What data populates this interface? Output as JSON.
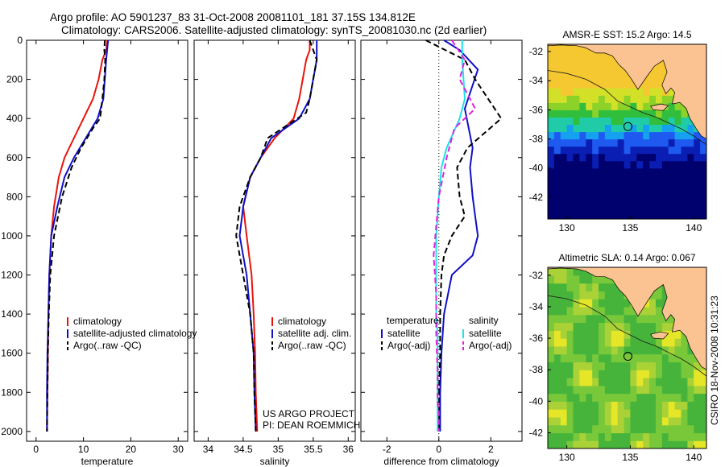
{
  "header": {
    "line1": "Argo profile: AO 5901237_83 31-Oct-2008 20081101_181 37.15S 134.812E",
    "line2": "Climatology: CARS2006. Satellite-adjusted climatology: synTS_20081030.nc (2d earlier)"
  },
  "footer_note": {
    "line1": "US ARGO PROJECT",
    "line2": "PI: DEAN ROEMMICH"
  },
  "side_label": "CSIRO 18-Nov-2008 10:31:23",
  "colors": {
    "climatology": "#e8140c",
    "satellite": "#1010c8",
    "argo": "#000000",
    "sal_satellite": "#20e0e8",
    "sal_argo": "#e020e0",
    "land": "#fbc392"
  },
  "chart_data": [
    {
      "type": "line",
      "xlabel": "temperature",
      "ylabel": "",
      "xlim": [
        -2,
        32
      ],
      "ylim": [
        2050,
        0
      ],
      "x_ticks": [
        "0",
        "10",
        "20",
        "30"
      ],
      "y_ticks": [
        "0",
        "200",
        "400",
        "600",
        "800",
        "1000",
        "1200",
        "1400",
        "1600",
        "1800",
        "2000"
      ],
      "legend": [
        "climatology",
        "satellite-adjusted climatology",
        "Argo(..raw -QC)"
      ],
      "series": [
        {
          "name": "climatology",
          "x": [
            15.0,
            14.8,
            14.0,
            13.2,
            12.0,
            10.0,
            8.0,
            6.0,
            4.8,
            3.8,
            3.2,
            2.8,
            2.6,
            2.5,
            2.4,
            2.3
          ],
          "y": [
            0,
            50,
            100,
            200,
            300,
            400,
            500,
            600,
            700,
            850,
            1000,
            1200,
            1400,
            1600,
            1800,
            2000
          ]
        },
        {
          "name": "satellite-adjusted climatology",
          "x": [
            15.2,
            15.0,
            14.8,
            14.5,
            14.2,
            13.0,
            10.5,
            8.0,
            6.0,
            4.5,
            3.2,
            2.8,
            2.6,
            2.4,
            2.3,
            2.3
          ],
          "y": [
            0,
            50,
            100,
            200,
            300,
            400,
            500,
            600,
            700,
            850,
            1000,
            1200,
            1400,
            1600,
            1800,
            2000
          ]
        },
        {
          "name": "Argo(..raw -QC)",
          "x": [
            14.5,
            14.4,
            14.6,
            14.4,
            14.0,
            13.5,
            12.0,
            9.5,
            7.5,
            5.5,
            3.8,
            3.0,
            2.7,
            2.5,
            2.4,
            2.3
          ],
          "y": [
            0,
            50,
            100,
            200,
            300,
            400,
            450,
            550,
            650,
            800,
            1000,
            1200,
            1400,
            1600,
            1800,
            2000
          ]
        }
      ]
    },
    {
      "type": "line",
      "xlabel": "salinity",
      "ylabel": "",
      "xlim": [
        33.8,
        36.1
      ],
      "ylim": [
        2050,
        0
      ],
      "x_ticks": [
        "34",
        "34.5",
        "35",
        "35.5",
        "36"
      ],
      "legend": [
        "climatology",
        "satellite adj. clim.",
        "Argo(..raw -QC)"
      ],
      "series": [
        {
          "name": "climatology",
          "x": [
            35.45,
            35.45,
            35.4,
            35.35,
            35.3,
            35.22,
            34.95,
            34.75,
            34.6,
            34.5,
            34.55,
            34.62,
            34.65,
            34.67,
            34.68,
            34.7
          ],
          "y": [
            0,
            50,
            100,
            200,
            300,
            400,
            500,
            600,
            700,
            850,
            1000,
            1200,
            1400,
            1600,
            1800,
            2000
          ]
        },
        {
          "name": "satellite adj. clim.",
          "x": [
            35.55,
            35.55,
            35.55,
            35.5,
            35.45,
            35.3,
            34.9,
            34.75,
            34.6,
            34.5,
            34.45,
            34.55,
            34.6,
            34.65,
            34.66,
            34.68
          ],
          "y": [
            0,
            50,
            100,
            200,
            300,
            400,
            500,
            600,
            700,
            850,
            1000,
            1200,
            1400,
            1600,
            1800,
            2000
          ]
        },
        {
          "name": "Argo(..raw -QC)",
          "x": [
            35.45,
            35.5,
            35.55,
            35.5,
            35.45,
            35.4,
            34.85,
            34.75,
            34.6,
            34.45,
            34.4,
            34.5,
            34.6,
            34.65,
            34.66,
            34.68
          ],
          "y": [
            0,
            50,
            100,
            200,
            300,
            370,
            500,
            600,
            700,
            850,
            1000,
            1200,
            1400,
            1600,
            1800,
            2000
          ]
        }
      ]
    },
    {
      "type": "line",
      "xlabel": "difference from climatology",
      "ylabel": "",
      "xlim": [
        -3,
        3.2
      ],
      "ylim": [
        2050,
        0
      ],
      "x_ticks": [
        "-2",
        "0",
        "2"
      ],
      "legend_headers": [
        "temperature",
        "salinity"
      ],
      "legend": [
        "satellite",
        "Argo(-adj)",
        "satellite",
        "Argo(-adj)"
      ],
      "series": [
        {
          "name": "temperature satellite",
          "x": [
            0.2,
            0.8,
            1.5,
            1.0,
            1.3,
            1.2,
            1.3,
            1.4,
            1.5,
            1.3,
            0.5,
            0.2,
            0.1,
            0.05,
            0.05,
            0.05
          ],
          "y": [
            0,
            50,
            150,
            350,
            550,
            650,
            800,
            900,
            1000,
            1100,
            1200,
            1400,
            1600,
            1800,
            1900,
            2000
          ]
        },
        {
          "name": "temperature Argo(-adj)",
          "x": [
            -0.5,
            1.0,
            1.4,
            2.4,
            1.1,
            0.7,
            0.8,
            1.0,
            0.5,
            0.2,
            0.1,
            0.05,
            0.05,
            0.0,
            0.0,
            0.0
          ],
          "y": [
            0,
            100,
            200,
            400,
            550,
            650,
            800,
            900,
            1000,
            1100,
            1200,
            1400,
            1600,
            1800,
            1900,
            2000
          ]
        },
        {
          "name": "salinity satellite",
          "x": [
            0.9,
            0.9,
            1.0,
            0.8,
            0.3,
            0.1,
            0.0,
            -0.1,
            -0.1,
            -0.1,
            -0.05,
            -0.05,
            -0.05,
            -0.05,
            -0.05,
            -0.05
          ],
          "y": [
            0,
            100,
            300,
            400,
            550,
            650,
            800,
            1000,
            1200,
            1400,
            1500,
            1600,
            1800,
            1900,
            1950,
            2000
          ]
        },
        {
          "name": "salinity Argo(-adj)",
          "x": [
            0.5,
            1.0,
            0.8,
            1.4,
            0.6,
            0.3,
            0.0,
            -0.2,
            -0.1,
            -0.1,
            -0.05,
            -0.05,
            -0.05,
            0.0,
            0.0,
            0.0
          ],
          "y": [
            0,
            100,
            200,
            350,
            450,
            600,
            800,
            1100,
            1300,
            1500,
            1700,
            1800,
            1850,
            1900,
            1950,
            2000
          ]
        }
      ]
    },
    {
      "type": "heatmap",
      "title": "AMSR-E SST: 15.2 Argo: 14.5",
      "xlim": [
        128.5,
        141
      ],
      "ylim": [
        -43.5,
        -31.5
      ],
      "x_ticks": [
        "130",
        "135",
        "140"
      ],
      "y_ticks": [
        "-32",
        "-34",
        "-36",
        "-38",
        "-40",
        "-42"
      ],
      "marker": {
        "lon": 134.812,
        "lat": -37.15
      }
    },
    {
      "type": "heatmap",
      "title": "Altimetric SLA: 0.14 Argo: 0.067",
      "xlim": [
        128.5,
        141
      ],
      "ylim": [
        -43,
        -31.5
      ],
      "x_ticks": [
        "130",
        "135",
        "140"
      ],
      "y_ticks": [
        "-32",
        "-34",
        "-36",
        "-38",
        "-40",
        "-42"
      ],
      "marker": {
        "lon": 134.812,
        "lat": -37.15
      }
    }
  ]
}
